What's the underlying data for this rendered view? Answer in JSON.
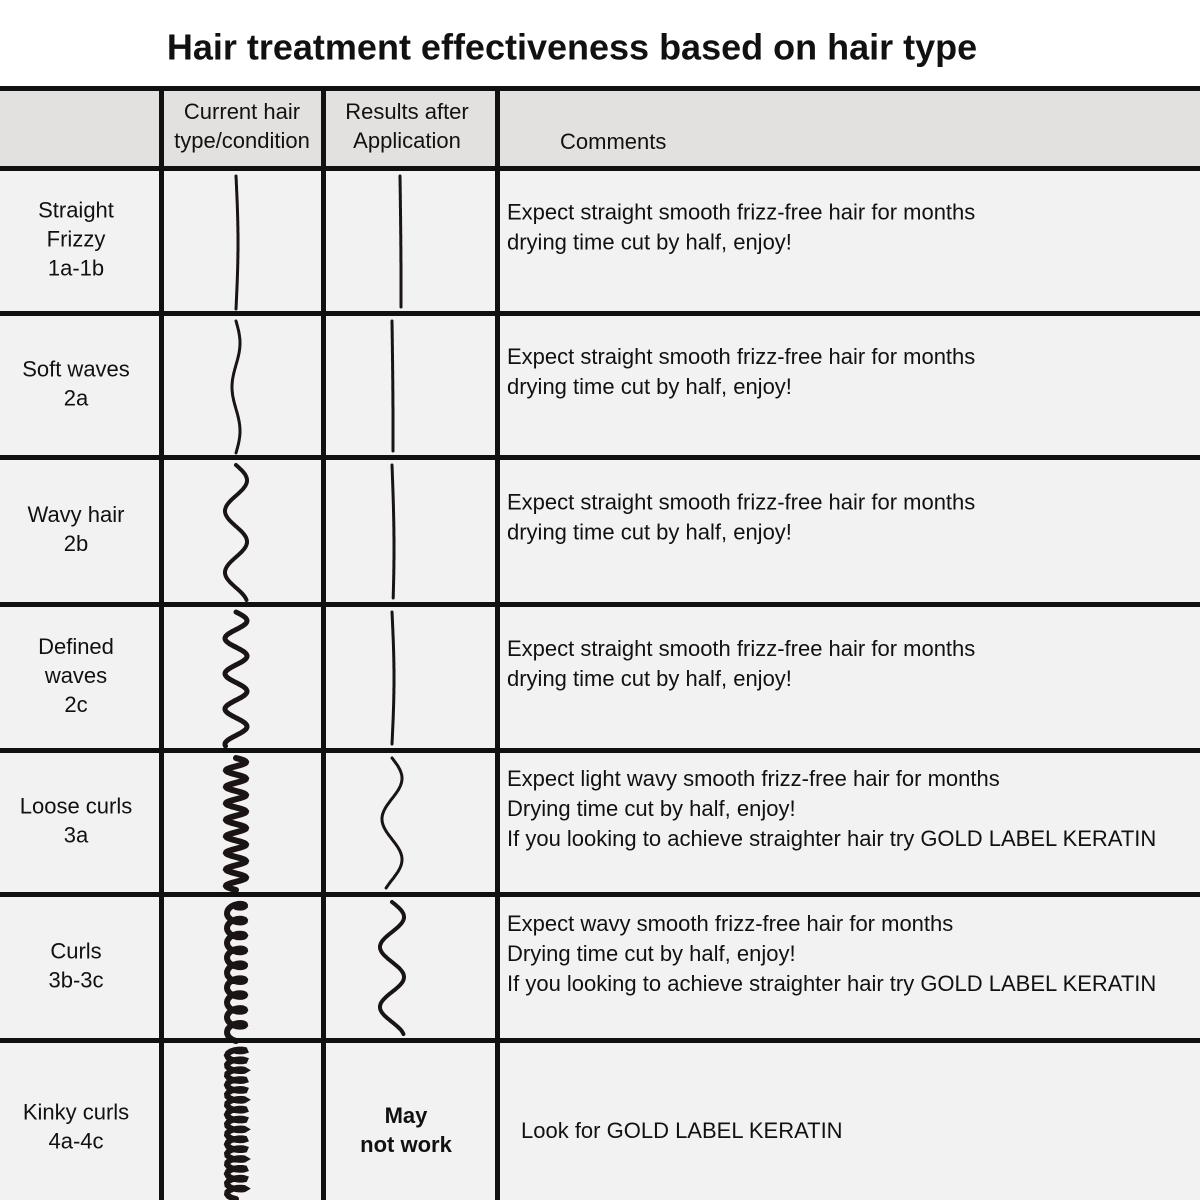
{
  "title": "Hair treatment effectiveness based on hair type",
  "columns": [
    [
      "Current hair",
      "type/condition"
    ],
    [
      "Results after",
      "Application"
    ],
    [
      "Comments"
    ]
  ],
  "rows": [
    {
      "label": [
        "Straight",
        "Frizzy",
        "1a-1b"
      ],
      "comments": [
        "Expect straight smooth frizz-free hair for months",
        "drying time cut by half, enjoy!"
      ]
    },
    {
      "label": [
        "Soft waves",
        "2a"
      ],
      "comments": [
        "Expect straight smooth frizz-free hair for months",
        "drying time cut by half, enjoy!"
      ]
    },
    {
      "label": [
        "Wavy hair",
        "2b"
      ],
      "comments": [
        "Expect straight smooth frizz-free hair for months",
        "drying time cut by half, enjoy!"
      ]
    },
    {
      "label": [
        "Defined",
        "waves",
        "2c"
      ],
      "comments": [
        "Expect straight smooth frizz-free hair for months",
        "drying time cut by half, enjoy!"
      ]
    },
    {
      "label": [
        "Loose curls",
        "3a"
      ],
      "comments": [
        "Expect light wavy smooth frizz-free hair for months",
        "Drying time cut by half, enjoy!",
        "If you looking to achieve straighter hair try GOLD LABEL KERATIN"
      ]
    },
    {
      "label": [
        "Curls",
        "3b-3c"
      ],
      "comments": [
        "Expect wavy smooth frizz-free hair for months",
        "Drying time cut by half, enjoy!",
        "If you looking to achieve straighter hair try GOLD LABEL KERATIN"
      ]
    },
    {
      "label": [
        "Kinky curls",
        "4a-4c"
      ],
      "result": [
        "May",
        "not work"
      ],
      "comments": [
        "Look for GOLD LABEL KERATIN"
      ]
    }
  ]
}
